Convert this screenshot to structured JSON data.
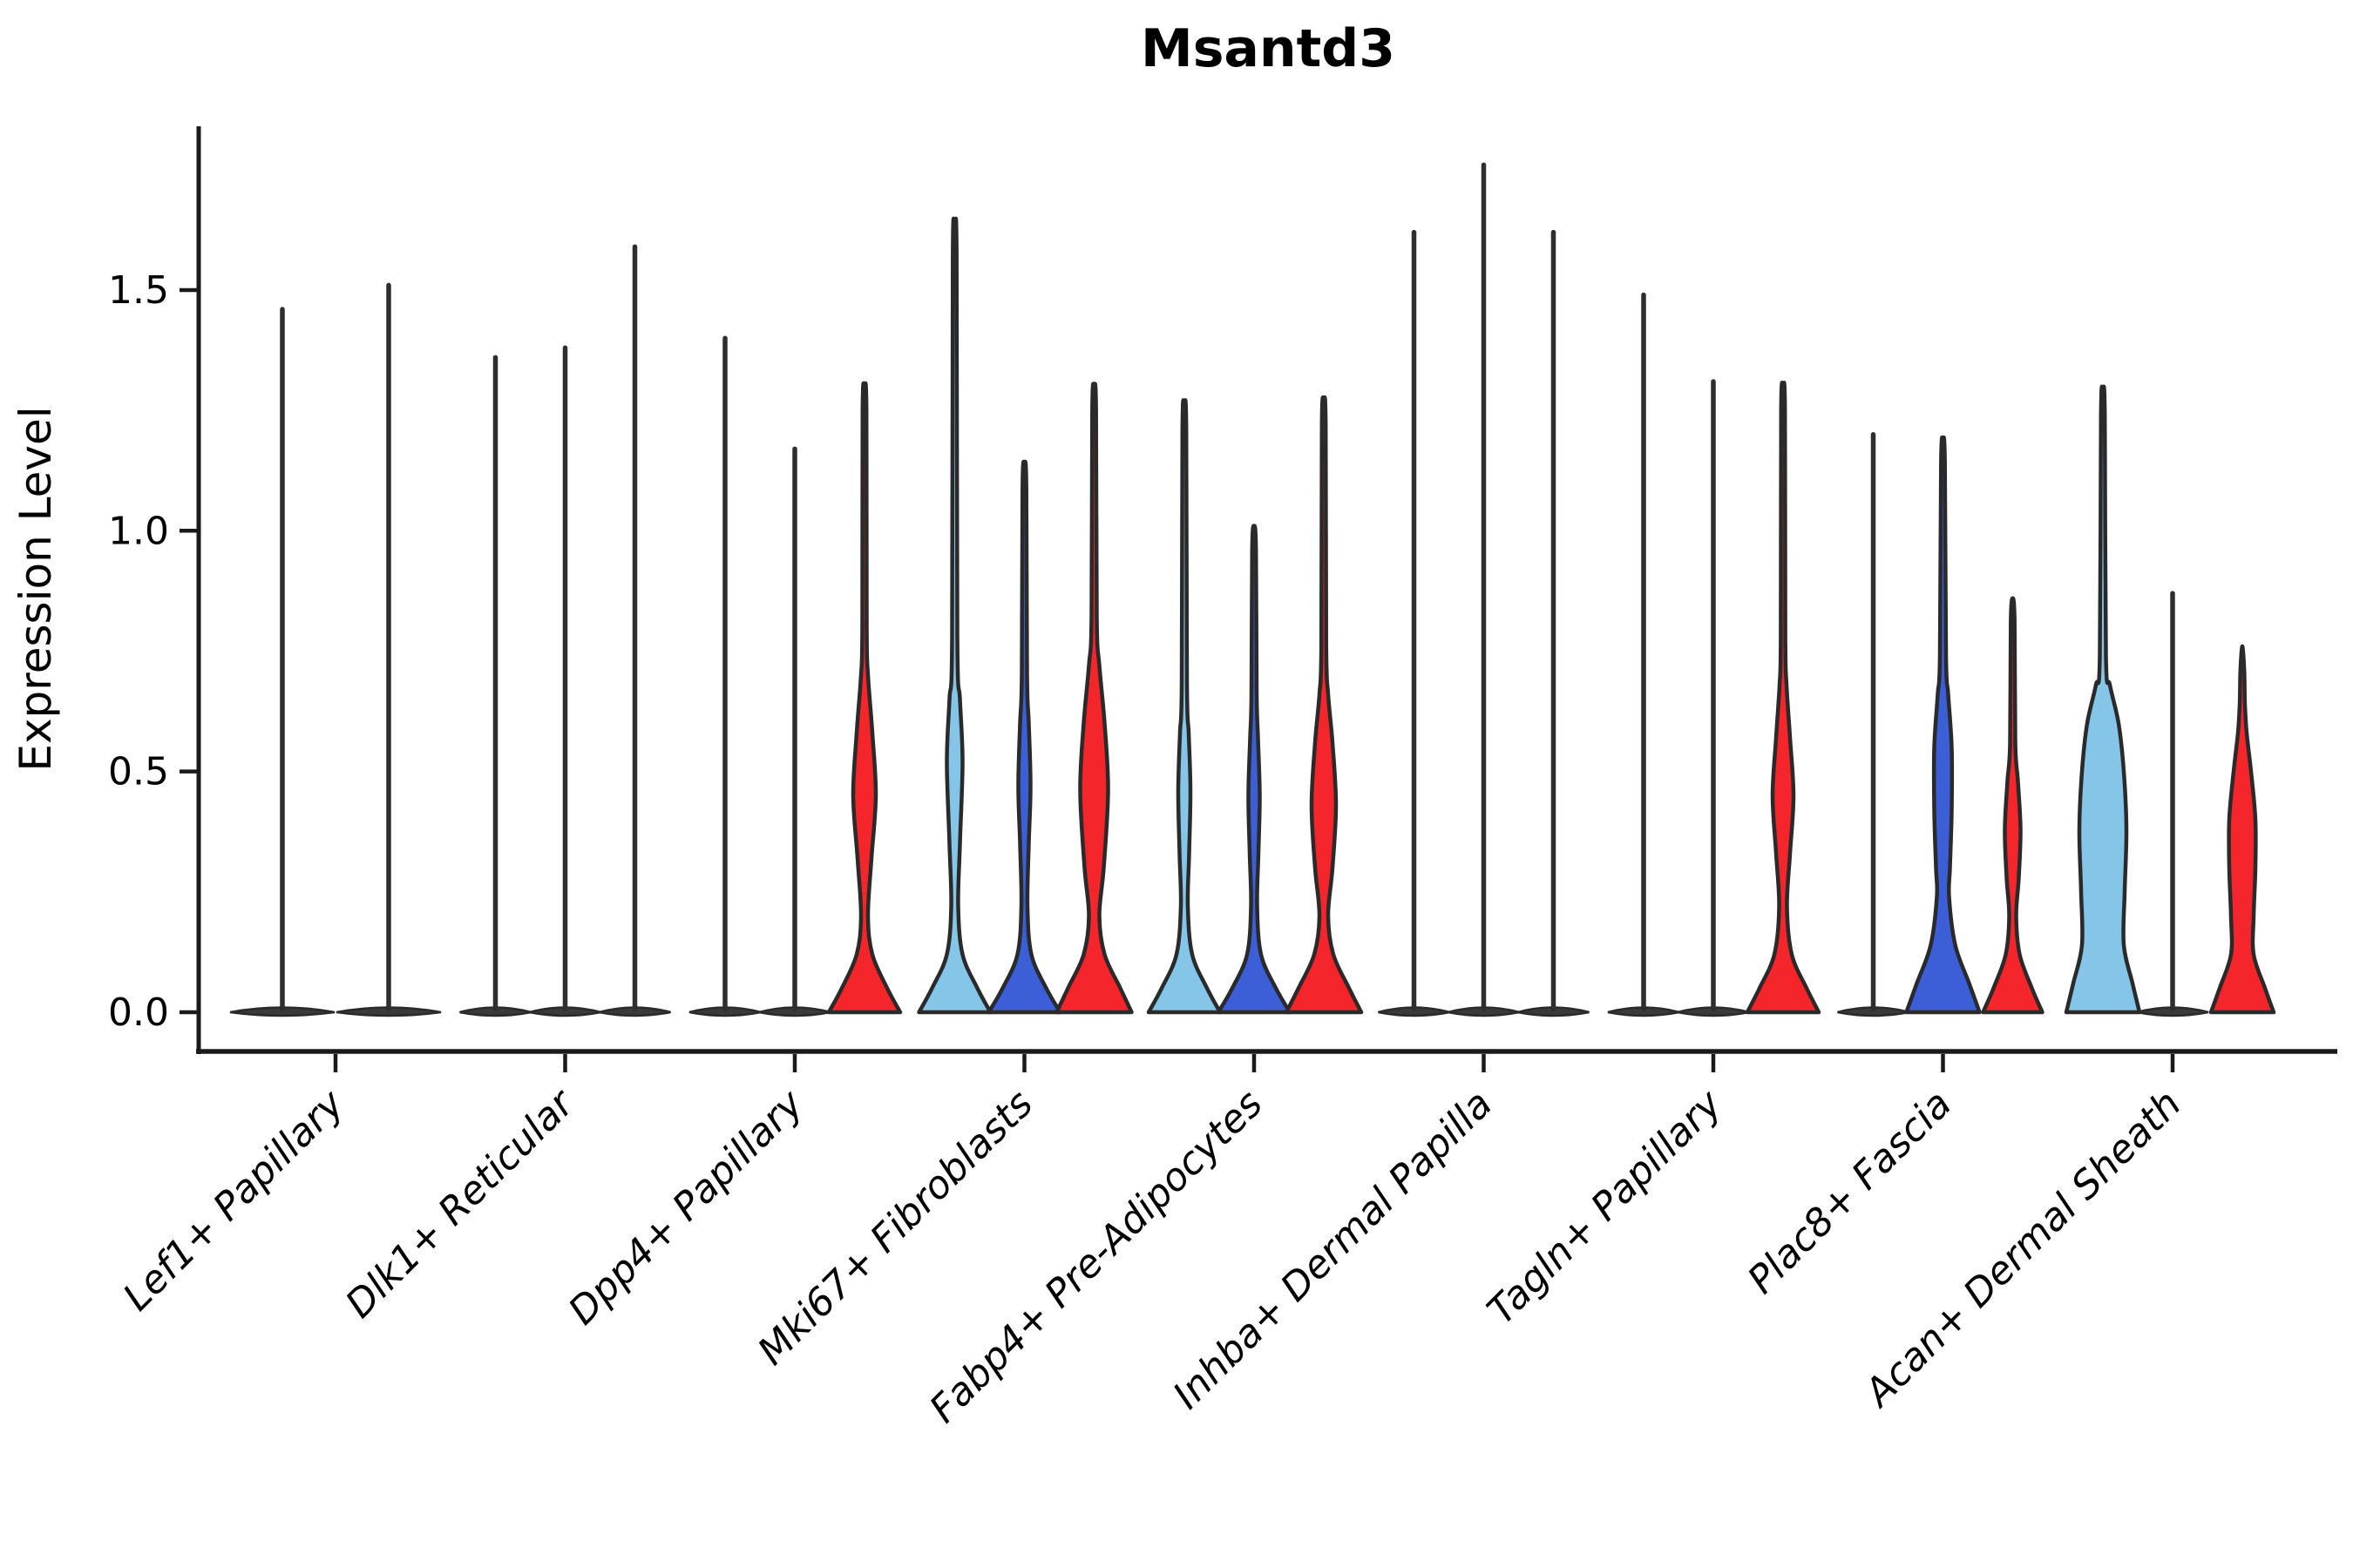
{
  "chart_data": {
    "type": "violin",
    "title": "Msantd3",
    "xlabel": "",
    "ylabel": "Expression Level",
    "grid": false,
    "legend": "none",
    "ylim": [
      -0.07,
      1.84
    ],
    "y_axis": {
      "tick_values": [
        0.0,
        0.5,
        1.0,
        1.5
      ],
      "tick_labels": [
        "0.0",
        "0.5",
        "1.0",
        "1.5"
      ]
    },
    "categories": [
      "Lef1+ Papillary",
      "Dlk1+ Reticular",
      "Dpp4+ Papillary",
      "Mki67+ Fibroblasts",
      "Fabp4+ Pre-Adipocytes",
      "Inhba+ Dermal Papilla",
      "Tagln+ Papillary",
      "Plac8+ Fascia",
      "Acan+ Dermal Sheath"
    ],
    "colors": {
      "series": {
        "light_blue": "#85c6e8",
        "dark_blue": "#3c5fd8",
        "red": "#f4262b",
        "none": "#3a3a3a"
      },
      "outline": "#2a2a2a",
      "axis": "#1a1a1a",
      "background": "#ffffff"
    },
    "groups": [
      {
        "category": "Lef1+ Papillary",
        "violins": [
          {
            "series": "none",
            "flat": true,
            "max": 1.46
          },
          {
            "series": "none",
            "flat": true,
            "max": 1.51
          }
        ]
      },
      {
        "category": "Dlk1+ Reticular",
        "violins": [
          {
            "series": "none",
            "flat": true,
            "max": 1.36
          },
          {
            "series": "none",
            "flat": true,
            "max": 1.38
          },
          {
            "series": "none",
            "flat": true,
            "max": 1.59
          }
        ]
      },
      {
        "category": "Dpp4+ Papillary",
        "violins": [
          {
            "series": "none",
            "flat": true,
            "max": 1.4
          },
          {
            "series": "none",
            "flat": true,
            "max": 1.17
          },
          {
            "series": "red",
            "flat": false,
            "max": 1.3,
            "profile": [
              [
                0,
                41
              ],
              [
                0.05,
                26
              ],
              [
                0.12,
                9
              ],
              [
                0.2,
                4
              ],
              [
                0.32,
                8
              ],
              [
                0.45,
                13
              ],
              [
                0.58,
                9
              ],
              [
                0.7,
                4
              ],
              [
                0.8,
                2.5
              ]
            ]
          }
        ]
      },
      {
        "category": "Mki67+ Fibroblasts",
        "violins": [
          {
            "series": "light_blue",
            "flat": false,
            "max": 1.62,
            "profile": [
              [
                0,
                41
              ],
              [
                0.05,
                26
              ],
              [
                0.12,
                9
              ],
              [
                0.22,
                4
              ],
              [
                0.35,
                6
              ],
              [
                0.52,
                9
              ],
              [
                0.65,
                6
              ],
              [
                0.78,
                3
              ]
            ]
          },
          {
            "series": "dark_blue",
            "flat": false,
            "max": 1.14,
            "profile": [
              [
                0,
                41
              ],
              [
                0.05,
                25
              ],
              [
                0.12,
                8
              ],
              [
                0.22,
                3.5
              ],
              [
                0.35,
                5
              ],
              [
                0.47,
                7
              ],
              [
                0.6,
                5
              ],
              [
                0.7,
                3
              ]
            ]
          },
          {
            "series": "red",
            "flat": false,
            "max": 1.3,
            "profile": [
              [
                0,
                43
              ],
              [
                0.05,
                30
              ],
              [
                0.12,
                12
              ],
              [
                0.2,
                6
              ],
              [
                0.3,
                11
              ],
              [
                0.46,
                16
              ],
              [
                0.6,
                12
              ],
              [
                0.72,
                6
              ],
              [
                0.82,
                3
              ]
            ]
          }
        ]
      },
      {
        "category": "Fabp4+ Pre-Adipocytes",
        "violins": [
          {
            "series": "light_blue",
            "flat": false,
            "max": 1.26,
            "profile": [
              [
                0,
                41
              ],
              [
                0.05,
                26
              ],
              [
                0.12,
                9
              ],
              [
                0.22,
                4
              ],
              [
                0.33,
                5.5
              ],
              [
                0.46,
                7
              ],
              [
                0.58,
                5
              ],
              [
                0.68,
                3
              ]
            ]
          },
          {
            "series": "dark_blue",
            "flat": false,
            "max": 1.01,
            "profile": [
              [
                0,
                41
              ],
              [
                0.05,
                25
              ],
              [
                0.12,
                8
              ],
              [
                0.22,
                3.5
              ],
              [
                0.33,
                5
              ],
              [
                0.45,
                6.5
              ],
              [
                0.57,
                4.5
              ],
              [
                0.66,
                3
              ]
            ]
          },
          {
            "series": "red",
            "flat": false,
            "max": 1.27,
            "profile": [
              [
                0,
                43
              ],
              [
                0.05,
                29
              ],
              [
                0.12,
                11
              ],
              [
                0.2,
                5
              ],
              [
                0.3,
                10
              ],
              [
                0.43,
                14
              ],
              [
                0.56,
                10
              ],
              [
                0.66,
                5
              ],
              [
                0.76,
                2.8
              ]
            ]
          }
        ]
      },
      {
        "category": "Inhba+ Dermal Papilla",
        "violins": [
          {
            "series": "none",
            "flat": true,
            "max": 1.62
          },
          {
            "series": "none",
            "flat": true,
            "max": 1.76
          },
          {
            "series": "none",
            "flat": true,
            "max": 1.62
          }
        ]
      },
      {
        "category": "Tagln+ Papillary",
        "violins": [
          {
            "series": "none",
            "flat": true,
            "max": 1.49
          },
          {
            "series": "none",
            "flat": true,
            "max": 1.31
          },
          {
            "series": "red",
            "flat": false,
            "max": 1.3,
            "profile": [
              [
                0,
                41
              ],
              [
                0.05,
                27
              ],
              [
                0.12,
                10
              ],
              [
                0.22,
                4.5
              ],
              [
                0.33,
                8
              ],
              [
                0.45,
                12
              ],
              [
                0.57,
                8
              ],
              [
                0.68,
                4
              ],
              [
                0.78,
                2.6
              ]
            ]
          }
        ]
      },
      {
        "category": "Plac8+ Fascia",
        "violins": [
          {
            "series": "none",
            "flat": true,
            "max": 1.2
          },
          {
            "series": "dark_blue",
            "flat": false,
            "max": 1.19,
            "profile": [
              [
                0,
                42
              ],
              [
                0.06,
                30
              ],
              [
                0.14,
                14
              ],
              [
                0.24,
                7
              ],
              [
                0.3,
                8
              ],
              [
                0.42,
                10
              ],
              [
                0.55,
                10
              ],
              [
                0.66,
                6
              ],
              [
                0.74,
                3.5
              ]
            ]
          },
          {
            "series": "red",
            "flat": false,
            "max": 0.86,
            "profile": [
              [
                0,
                34
              ],
              [
                0.05,
                22
              ],
              [
                0.12,
                8
              ],
              [
                0.2,
                4
              ],
              [
                0.28,
                7
              ],
              [
                0.38,
                9
              ],
              [
                0.48,
                6
              ],
              [
                0.56,
                3
              ]
            ]
          }
        ]
      },
      {
        "category": "Acan+ Dermal Sheath",
        "violins": [
          {
            "series": "light_blue",
            "flat": false,
            "max": 1.29,
            "profile": [
              [
                0,
                42
              ],
              [
                0.06,
                34
              ],
              [
                0.14,
                24
              ],
              [
                0.25,
                25
              ],
              [
                0.38,
                27
              ],
              [
                0.5,
                24
              ],
              [
                0.6,
                18
              ],
              [
                0.68,
                8
              ],
              [
                0.74,
                3.5
              ]
            ]
          },
          {
            "series": "none",
            "flat": true,
            "max": 0.87
          },
          {
            "series": "red",
            "flat": false,
            "max": 0.76,
            "profile": [
              [
                0,
                36
              ],
              [
                0.05,
                26
              ],
              [
                0.12,
                13
              ],
              [
                0.2,
                13
              ],
              [
                0.3,
                15
              ],
              [
                0.4,
                15
              ],
              [
                0.5,
                10
              ],
              [
                0.58,
                5
              ],
              [
                0.64,
                3
              ]
            ]
          }
        ]
      }
    ]
  }
}
